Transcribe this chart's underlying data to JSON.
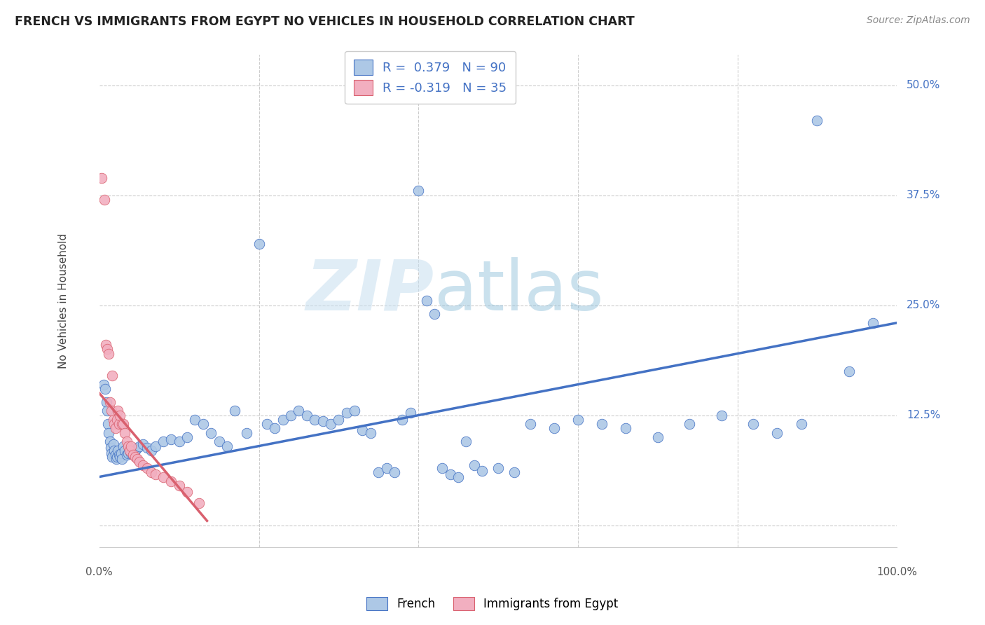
{
  "title": "FRENCH VS IMMIGRANTS FROM EGYPT NO VEHICLES IN HOUSEHOLD CORRELATION CHART",
  "source": "Source: ZipAtlas.com",
  "ylabel": "No Vehicles in Household",
  "yticks": [
    0.0,
    0.125,
    0.25,
    0.375,
    0.5
  ],
  "ytick_labels": [
    "",
    "12.5%",
    "25.0%",
    "37.5%",
    "50.0%"
  ],
  "xlim": [
    0.0,
    1.0
  ],
  "ylim": [
    -0.025,
    0.535
  ],
  "blue_color": "#adc8e6",
  "pink_color": "#f2afc0",
  "blue_line_color": "#4472c4",
  "pink_line_color": "#d9606e",
  "legend_R1": "0.379",
  "legend_N1": "90",
  "legend_R2": "-0.319",
  "legend_N2": "35",
  "watermark_zip": "ZIP",
  "watermark_atlas": "atlas",
  "french_scatter_x": [
    0.005,
    0.007,
    0.009,
    0.01,
    0.011,
    0.012,
    0.013,
    0.014,
    0.015,
    0.016,
    0.018,
    0.019,
    0.02,
    0.021,
    0.022,
    0.023,
    0.025,
    0.026,
    0.027,
    0.028,
    0.03,
    0.032,
    0.034,
    0.036,
    0.038,
    0.04,
    0.042,
    0.045,
    0.048,
    0.05,
    0.055,
    0.06,
    0.065,
    0.07,
    0.08,
    0.09,
    0.1,
    0.11,
    0.12,
    0.13,
    0.14,
    0.15,
    0.16,
    0.17,
    0.185,
    0.2,
    0.21,
    0.22,
    0.23,
    0.24,
    0.25,
    0.26,
    0.27,
    0.28,
    0.29,
    0.3,
    0.31,
    0.32,
    0.33,
    0.34,
    0.35,
    0.36,
    0.37,
    0.38,
    0.39,
    0.4,
    0.41,
    0.42,
    0.43,
    0.44,
    0.45,
    0.46,
    0.47,
    0.48,
    0.5,
    0.52,
    0.54,
    0.57,
    0.6,
    0.63,
    0.66,
    0.7,
    0.74,
    0.78,
    0.82,
    0.85,
    0.88,
    0.9,
    0.94,
    0.97
  ],
  "french_scatter_y": [
    0.16,
    0.155,
    0.14,
    0.13,
    0.115,
    0.105,
    0.095,
    0.088,
    0.082,
    0.078,
    0.092,
    0.085,
    0.08,
    0.075,
    0.078,
    0.085,
    0.08,
    0.078,
    0.082,
    0.075,
    0.09,
    0.085,
    0.08,
    0.082,
    0.085,
    0.082,
    0.08,
    0.085,
    0.088,
    0.09,
    0.092,
    0.088,
    0.085,
    0.09,
    0.095,
    0.098,
    0.095,
    0.1,
    0.12,
    0.115,
    0.105,
    0.095,
    0.09,
    0.13,
    0.105,
    0.32,
    0.115,
    0.11,
    0.12,
    0.125,
    0.13,
    0.125,
    0.12,
    0.118,
    0.115,
    0.12,
    0.128,
    0.13,
    0.108,
    0.105,
    0.06,
    0.065,
    0.06,
    0.12,
    0.128,
    0.38,
    0.255,
    0.24,
    0.065,
    0.058,
    0.055,
    0.095,
    0.068,
    0.062,
    0.065,
    0.06,
    0.115,
    0.11,
    0.12,
    0.115,
    0.11,
    0.1,
    0.115,
    0.125,
    0.115,
    0.105,
    0.115,
    0.46,
    0.175,
    0.23
  ],
  "egypt_scatter_x": [
    0.003,
    0.006,
    0.008,
    0.01,
    0.012,
    0.013,
    0.015,
    0.016,
    0.018,
    0.019,
    0.02,
    0.022,
    0.023,
    0.025,
    0.026,
    0.028,
    0.03,
    0.032,
    0.034,
    0.036,
    0.038,
    0.04,
    0.042,
    0.045,
    0.048,
    0.05,
    0.055,
    0.06,
    0.065,
    0.07,
    0.08,
    0.09,
    0.1,
    0.11,
    0.125
  ],
  "egypt_scatter_y": [
    0.395,
    0.37,
    0.205,
    0.2,
    0.195,
    0.14,
    0.13,
    0.17,
    0.12,
    0.115,
    0.11,
    0.12,
    0.13,
    0.115,
    0.125,
    0.115,
    0.115,
    0.105,
    0.095,
    0.09,
    0.085,
    0.09,
    0.08,
    0.078,
    0.075,
    0.072,
    0.068,
    0.065,
    0.06,
    0.058,
    0.055,
    0.05,
    0.045,
    0.038,
    0.025
  ],
  "blue_trend_x": [
    0.0,
    1.0
  ],
  "blue_trend_y": [
    0.055,
    0.23
  ],
  "pink_trend_x": [
    0.0,
    0.135
  ],
  "pink_trend_y": [
    0.15,
    0.005
  ]
}
